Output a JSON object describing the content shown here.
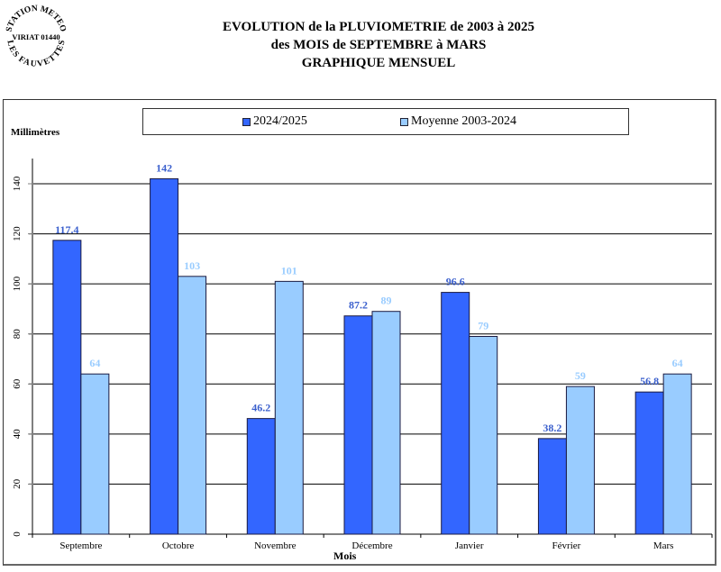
{
  "stamp": {
    "top_arc": "STATION METEO",
    "center": "VIRIAT 01440",
    "bottom_arc": "LES FAUVETTES"
  },
  "title": {
    "line1": "EVOLUTION de la PLUVIOMETRIE de 2003 à 2025",
    "line2": "des MOIS de SEPTEMBRE à MARS",
    "line3": "GRAPHIQUE MENSUEL"
  },
  "legend": {
    "items": [
      {
        "label": "2024/2025",
        "color": "#3366FF"
      },
      {
        "label": "Moyenne 2003-2024",
        "color": "#99CCFF"
      }
    ]
  },
  "colors": {
    "series1": "#3366FF",
    "series2": "#99CCFF",
    "series1_label": "#3A5FCD",
    "series2_label": "#99CCFF",
    "bar_border": "#1a1a40",
    "grid": "#000000",
    "axis": "#808080"
  },
  "chart_data": {
    "type": "bar",
    "title": "EVOLUTION de la PLUVIOMETRIE de 2003 à 2025 — des MOIS de SEPTEMBRE à MARS — GRAPHIQUE MENSUEL",
    "xlabel": "Mois",
    "ylabel": "Millimètres",
    "categories": [
      "Septembre",
      "Octobre",
      "Novembre",
      "Décembre",
      "Janvier",
      "Février",
      "Mars"
    ],
    "series": [
      {
        "name": "2024/2025",
        "values": [
          117.4,
          142,
          46.2,
          87.2,
          96.6,
          38.2,
          56.8
        ]
      },
      {
        "name": "Moyenne 2003-2024",
        "values": [
          64,
          103,
          101,
          89,
          79,
          59,
          64
        ]
      }
    ],
    "data_labels": [
      [
        "117.4",
        "142",
        "46.2",
        "87.2",
        "96.6",
        "38.2",
        "56.8"
      ],
      [
        "64",
        "103",
        "101",
        "89",
        "79",
        "59",
        "64"
      ]
    ],
    "yticks": [
      0,
      20,
      40,
      60,
      80,
      100,
      120,
      140
    ],
    "ylim": [
      0,
      150
    ],
    "grid": true,
    "legend_position": "top"
  }
}
